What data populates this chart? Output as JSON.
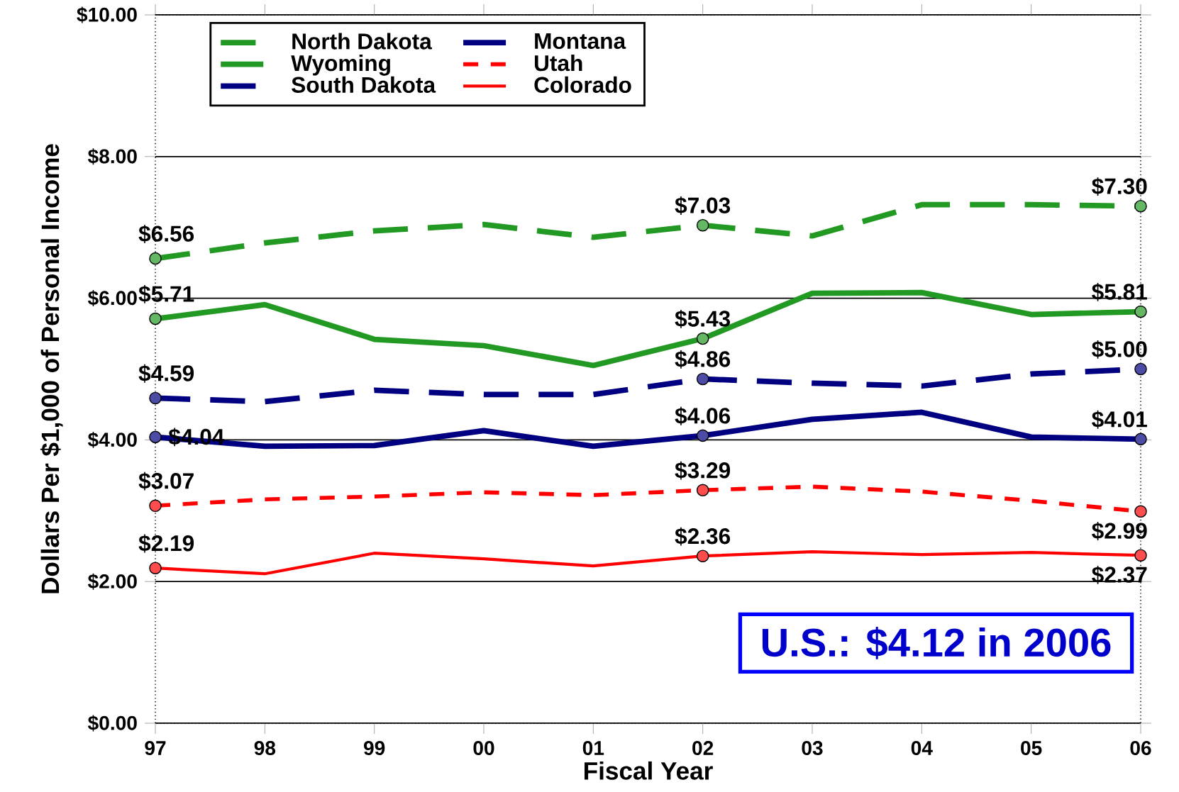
{
  "chart_data": {
    "type": "line",
    "xlabel": "Fiscal Year",
    "ylabel": "Dollars Per $1,000 of Personal Income",
    "categories": [
      "97",
      "98",
      "99",
      "00",
      "01",
      "02",
      "03",
      "04",
      "05",
      "06"
    ],
    "ylim": [
      0,
      10
    ],
    "yticks": [
      {
        "value": 0,
        "label": "$0.00"
      },
      {
        "value": 2,
        "label": "$2.00"
      },
      {
        "value": 4,
        "label": "$4.00"
      },
      {
        "value": 6,
        "label": "$6.00"
      },
      {
        "value": 8,
        "label": "$8.00"
      },
      {
        "value": 10,
        "label": "$10.00"
      }
    ],
    "grid": "y",
    "legend": "top left",
    "annotations": [
      "U.S.: $4.12 in 2006"
    ],
    "series": [
      {
        "name": "North Dakota",
        "color": "#229922",
        "line_style": "dashed",
        "values": [
          6.56,
          6.78,
          6.95,
          7.04,
          6.86,
          7.03,
          6.88,
          7.32,
          7.32,
          7.3
        ],
        "value_labels": [
          "$6.56",
          null,
          null,
          null,
          null,
          "$7.03",
          null,
          null,
          null,
          "$7.30"
        ]
      },
      {
        "name": "Wyoming",
        "color": "#229922",
        "line_style": "solid",
        "values": [
          5.71,
          5.91,
          5.42,
          5.33,
          5.05,
          5.43,
          6.07,
          6.08,
          5.77,
          5.81
        ],
        "value_labels": [
          "$5.71",
          null,
          null,
          null,
          null,
          "$5.43",
          null,
          null,
          null,
          "$5.81"
        ]
      },
      {
        "name": "South Dakota",
        "color": "#000080",
        "line_style": "dashed",
        "values": [
          4.59,
          4.54,
          4.7,
          4.64,
          4.64,
          4.86,
          4.8,
          4.76,
          4.93,
          5.0
        ],
        "value_labels": [
          "$4.59",
          null,
          null,
          null,
          null,
          "$4.86",
          null,
          null,
          null,
          "$5.00"
        ]
      },
      {
        "name": "Montana",
        "color": "#000080",
        "line_style": "solid",
        "values": [
          4.04,
          3.91,
          3.92,
          4.13,
          3.91,
          4.06,
          4.29,
          4.39,
          4.04,
          4.01
        ],
        "value_labels": [
          "$4.04",
          null,
          null,
          null,
          null,
          "$4.06",
          null,
          null,
          null,
          "$4.01"
        ]
      },
      {
        "name": "Utah",
        "color": "#ff0000",
        "line_style": "dotted",
        "values": [
          3.07,
          3.16,
          3.2,
          3.26,
          3.22,
          3.29,
          3.34,
          3.27,
          3.14,
          2.99
        ],
        "value_labels": [
          "$3.07",
          null,
          null,
          null,
          null,
          "$3.29",
          null,
          null,
          null,
          "$2.99"
        ]
      },
      {
        "name": "Colorado",
        "color": "#ff0000",
        "line_style": "solid",
        "values": [
          2.19,
          2.11,
          2.4,
          2.32,
          2.22,
          2.36,
          2.42,
          2.38,
          2.41,
          2.37
        ],
        "value_labels": [
          "$2.19",
          null,
          null,
          null,
          null,
          "$2.36",
          null,
          null,
          null,
          "$2.37"
        ]
      }
    ]
  }
}
